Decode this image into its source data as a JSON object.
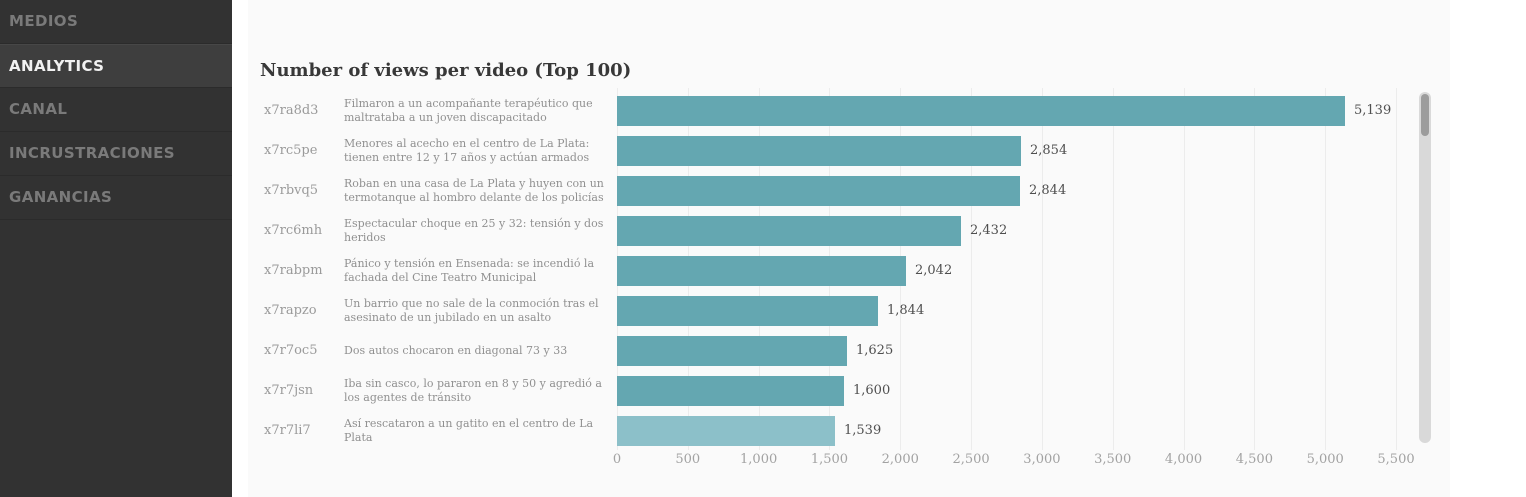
{
  "sidebar": {
    "items": [
      {
        "label": "MEDIOS",
        "active": false
      },
      {
        "label": "ANALYTICS",
        "active": true
      },
      {
        "label": "CANAL",
        "active": false
      },
      {
        "label": "INCRUSTRACIONES",
        "active": false
      },
      {
        "label": "GANANCIAS",
        "active": false
      }
    ]
  },
  "chart_data": {
    "type": "bar",
    "orientation": "horizontal",
    "title": "Number of views per video (Top 100)",
    "categories": [
      "x7ra8d3",
      "x7rc5pe",
      "x7rbvq5",
      "x7rc6mh",
      "x7rabpm",
      "x7rapzo",
      "x7r7oc5",
      "x7r7jsn",
      "x7r7li7"
    ],
    "labels": [
      "Filmaron a un acompañante terapéutico que maltrataba a un joven discapacitado",
      "Menores al acecho en el centro de La Plata: tienen entre 12 y 17 años y actúan armados",
      "Roban en una casa de La Plata y huyen con un termotanque al hombro delante de los policías",
      "Espectacular choque en 25 y 32: tensión y dos heridos",
      "Pánico y tensión en Ensenada: se incendió la fachada del Cine Teatro Municipal",
      "Un barrio que no sale de la conmoción tras el asesinato de un jubilado en un asalto",
      "Dos autos chocaron en diagonal 73 y 33",
      "Iba sin casco, lo pararon en 8 y 50 y agredió a los agentes de tránsito",
      "Así rescataron a un gatito en el centro de La Plata"
    ],
    "values": [
      5139,
      2854,
      2844,
      2432,
      2042,
      1844,
      1625,
      1600,
      1539
    ],
    "value_labels": [
      "5,139",
      "2,854",
      "2,844",
      "2,432",
      "2,042",
      "1,844",
      "1,625",
      "1,600",
      "1,539"
    ],
    "xlim": [
      0,
      5500
    ],
    "xticks": [
      0,
      500,
      1000,
      1500,
      2000,
      2500,
      3000,
      3500,
      4000,
      4500,
      5000,
      5500
    ],
    "xtick_labels": [
      "0",
      "500",
      "1,000",
      "1,500",
      "2,000",
      "2,500",
      "3,000",
      "3,500",
      "4,000",
      "4,500",
      "5,000",
      "5,500"
    ],
    "grid": true,
    "legend": false,
    "highlighted_index": 8
  },
  "colors": {
    "bar": "#64a7b1",
    "bar_highlight": "#8cc0c9",
    "sidebar_bg": "#323232",
    "sidebar_active_bg": "#3e3e3e",
    "panel_bg": "#fafafa",
    "grid": "#ececec"
  }
}
